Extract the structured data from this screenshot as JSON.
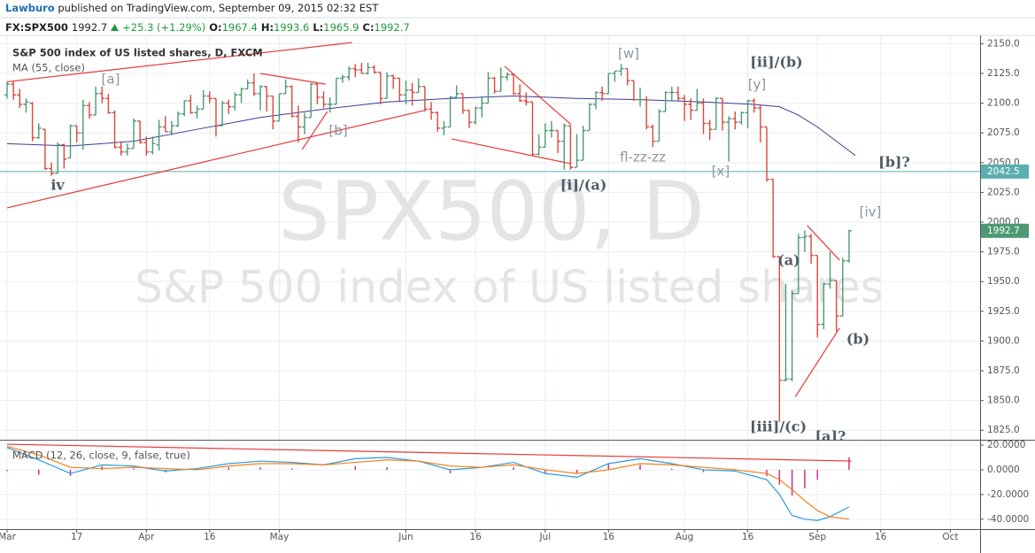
{
  "header": {
    "author": "Lawburo",
    "published": "published on TradingView.com, September 09, 2015 02:32 EST",
    "symbol": "FX:SPX500",
    "last": 1992.7,
    "change": "+25.3 (+1.29%)",
    "ohlc_labels": [
      "O:",
      "H:",
      "L:",
      "C:"
    ],
    "ohlc_values": [
      1967.4,
      1993.6,
      1965.9,
      1992.7
    ]
  },
  "chart_data": [
    {
      "type": "ohlc",
      "title": "S&P 500 index of US listed shares, D, FXCM",
      "watermark": "SPX500, D",
      "watermark_subtitle": "S&P 500 index of US listed shares",
      "up_color": "#4c9a73",
      "down_color": "#d9483b",
      "ohlc": [
        [
          2107,
          2118,
          2104,
          2116
        ],
        [
          2116,
          2118,
          2103,
          2107
        ],
        [
          2107,
          2112,
          2096,
          2099
        ],
        [
          2099,
          2104,
          2092,
          2101
        ],
        [
          2100,
          2101,
          2068,
          2071
        ],
        [
          2071,
          2083,
          2070,
          2079
        ],
        [
          2078,
          2078,
          2044,
          2045
        ],
        [
          2045,
          2050,
          2039,
          2041
        ],
        [
          2041,
          2067,
          2041,
          2065
        ],
        [
          2065,
          2066,
          2045,
          2053
        ],
        [
          2054,
          2082,
          2054,
          2081
        ],
        [
          2081,
          2081,
          2067,
          2075
        ],
        [
          2075,
          2103,
          2061,
          2098
        ],
        [
          2098,
          2101,
          2087,
          2090
        ],
        [
          2090,
          2114,
          2090,
          2108
        ],
        [
          2108,
          2114,
          2100,
          2104
        ],
        [
          2104,
          2108,
          2091,
          2092
        ],
        [
          2092,
          2094,
          2062,
          2063
        ],
        [
          2063,
          2068,
          2056,
          2059
        ],
        [
          2059,
          2066,
          2056,
          2062
        ],
        [
          2062,
          2087,
          2062,
          2085
        ],
        [
          2085,
          2085,
          2066,
          2067
        ],
        [
          2067,
          2072,
          2056,
          2059
        ],
        [
          2059,
          2072,
          2057,
          2066
        ],
        [
          2065,
          2086,
          2060,
          2080
        ],
        [
          2080,
          2089,
          2076,
          2076
        ],
        [
          2076,
          2085,
          2073,
          2081
        ],
        [
          2081,
          2093,
          2080,
          2091
        ],
        [
          2091,
          2102,
          2089,
          2102
        ],
        [
          2102,
          2107,
          2091,
          2092
        ],
        [
          2092,
          2098,
          2087,
          2095
        ],
        [
          2095,
          2111,
          2095,
          2106
        ],
        [
          2106,
          2110,
          2100,
          2104
        ],
        [
          2104,
          2104,
          2072,
          2081
        ],
        [
          2081,
          2102,
          2081,
          2100
        ],
        [
          2100,
          2103,
          2091,
          2097
        ],
        [
          2097,
          2109,
          2094,
          2107
        ],
        [
          2107,
          2113,
          2100,
          2112
        ],
        [
          2112,
          2120,
          2112,
          2117
        ],
        [
          2117,
          2125,
          2106,
          2108
        ],
        [
          2108,
          2115,
          2094,
          2114
        ],
        [
          2114,
          2114,
          2093,
          2106
        ],
        [
          2106,
          2106,
          2078,
          2085
        ],
        [
          2085,
          2108,
          2085,
          2108
        ],
        [
          2108,
          2120,
          2108,
          2114
        ],
        [
          2114,
          2115,
          2088,
          2089
        ],
        [
          2089,
          2098,
          2067,
          2080
        ],
        [
          2080,
          2092,
          2074,
          2088
        ],
        [
          2088,
          2117,
          2088,
          2116
        ],
        [
          2116,
          2117,
          2099,
          2105
        ],
        [
          2105,
          2110,
          2096,
          2099
        ],
        [
          2099,
          2105,
          2092,
          2099
        ],
        [
          2099,
          2121,
          2099,
          2121
        ],
        [
          2121,
          2124,
          2117,
          2122
        ],
        [
          2122,
          2131,
          2119,
          2129
        ],
        [
          2129,
          2133,
          2122,
          2128
        ],
        [
          2128,
          2134,
          2125,
          2125
        ],
        [
          2125,
          2134,
          2124,
          2130
        ],
        [
          2130,
          2132,
          2125,
          2126
        ],
        [
          2126,
          2126,
          2099,
          2104
        ],
        [
          2104,
          2126,
          2104,
          2123
        ],
        [
          2123,
          2124,
          2112,
          2121
        ],
        [
          2121,
          2121,
          2102,
          2107
        ],
        [
          2107,
          2119,
          2099,
          2111
        ],
        [
          2111,
          2117,
          2098,
          2109
        ],
        [
          2109,
          2121,
          2109,
          2114
        ],
        [
          2114,
          2114,
          2093,
          2095
        ],
        [
          2095,
          2101,
          2086,
          2092
        ],
        [
          2092,
          2093,
          2076,
          2079
        ],
        [
          2079,
          2085,
          2073,
          2080
        ],
        [
          2080,
          2106,
          2080,
          2105
        ],
        [
          2105,
          2115,
          2105,
          2108
        ],
        [
          2108,
          2108,
          2091,
          2094
        ],
        [
          2094,
          2094,
          2079,
          2084
        ],
        [
          2084,
          2097,
          2082,
          2096
        ],
        [
          2096,
          2106,
          2088,
          2100
        ],
        [
          2100,
          2126,
          2100,
          2121
        ],
        [
          2121,
          2122,
          2108,
          2110
        ],
        [
          2110,
          2130,
          2110,
          2122
        ],
        [
          2122,
          2126,
          2119,
          2124
        ],
        [
          2124,
          2125,
          2107,
          2108
        ],
        [
          2108,
          2116,
          2101,
          2102
        ],
        [
          2102,
          2109,
          2098,
          2101
        ],
        [
          2101,
          2101,
          2056,
          2057
        ],
        [
          2057,
          2074,
          2056,
          2063
        ],
        [
          2063,
          2083,
          2063,
          2077
        ],
        [
          2077,
          2085,
          2071,
          2077
        ],
        [
          2077,
          2077,
          2058,
          2068
        ],
        [
          2068,
          2083,
          2044,
          2081
        ],
        [
          2081,
          2081,
          2044,
          2046
        ],
        [
          2046,
          2074,
          2046,
          2052
        ],
        [
          2052,
          2081,
          2052,
          2077
        ],
        [
          2077,
          2100,
          2077,
          2099
        ],
        [
          2099,
          2110,
          2095,
          2109
        ],
        [
          2109,
          2114,
          2102,
          2108
        ],
        [
          2108,
          2125,
          2108,
          2125
        ],
        [
          2125,
          2127,
          2118,
          2127
        ],
        [
          2127,
          2133,
          2123,
          2129
        ],
        [
          2129,
          2129,
          2115,
          2119
        ],
        [
          2119,
          2119,
          2102,
          2103
        ],
        [
          2103,
          2113,
          2097,
          2103
        ],
        [
          2103,
          2106,
          2078,
          2080
        ],
        [
          2080,
          2082,
          2063,
          2068
        ],
        [
          2068,
          2095,
          2068,
          2093
        ],
        [
          2093,
          2110,
          2093,
          2109
        ],
        [
          2109,
          2114,
          2102,
          2109
        ],
        [
          2109,
          2114,
          2102,
          2104
        ],
        [
          2104,
          2107,
          2085,
          2099
        ],
        [
          2099,
          2104,
          2086,
          2094
        ],
        [
          2094,
          2112,
          2094,
          2100
        ],
        [
          2100,
          2104,
          2074,
          2083
        ],
        [
          2083,
          2086,
          2069,
          2078
        ],
        [
          2078,
          2105,
          2078,
          2104
        ],
        [
          2104,
          2104,
          2077,
          2084
        ],
        [
          2084,
          2089,
          2051,
          2087
        ],
        [
          2087,
          2093,
          2078,
          2084
        ],
        [
          2084,
          2093,
          2082,
          2092
        ],
        [
          2092,
          2103,
          2079,
          2102
        ],
        [
          2102,
          2104,
          2092,
          2096
        ],
        [
          2096,
          2099,
          2067,
          2080
        ],
        [
          2080,
          2080,
          2034,
          2036
        ],
        [
          2036,
          2036,
          1970,
          1971
        ],
        [
          1971,
          1971,
          1832,
          1867
        ],
        [
          1867,
          1948,
          1866,
          1868
        ],
        [
          1868,
          1943,
          1866,
          1940
        ],
        [
          1940,
          1990,
          1940,
          1987
        ],
        [
          1987,
          1993,
          1975,
          1988
        ],
        [
          1988,
          1990,
          1965,
          1972
        ],
        [
          1972,
          1972,
          1903,
          1914
        ],
        [
          1914,
          1949,
          1910,
          1948
        ],
        [
          1948,
          1975,
          1944,
          1951
        ],
        [
          1951,
          1951,
          1908,
          1921
        ],
        [
          1921,
          1970,
          1921,
          1967.4
        ],
        [
          1967.4,
          1993.6,
          1965.9,
          1992.7
        ]
      ],
      "ma": {
        "name": "MA (55, close)",
        "color": "#3b3b96",
        "x": [
          0,
          10,
          20,
          30,
          40,
          50,
          60,
          70,
          80,
          90,
          100,
          110,
          118,
          122,
          125,
          128,
          131,
          134
        ],
        "values": [
          2066,
          2064,
          2068,
          2078,
          2088,
          2095,
          2101,
          2104,
          2106,
          2104,
          2103,
          2101,
          2099,
          2097,
          2090,
          2080,
          2068,
          2056
        ]
      },
      "hline": {
        "value": 2042.5,
        "color": "#5aafb0"
      },
      "trendline_color": "#e53935",
      "trendlines": [
        [
          0,
          2118,
          54.5,
          2151
        ],
        [
          0,
          2012,
          66,
          2094
        ],
        [
          40,
          2125,
          50.3,
          2116
        ],
        [
          46.6,
          2061,
          50.6,
          2093
        ],
        [
          78.6,
          2131,
          89.1,
          2082
        ],
        [
          70.2,
          2070,
          89.1,
          2049
        ],
        [
          126.4,
          1997,
          131.5,
          1968
        ],
        [
          124.5,
          1853,
          131.5,
          1911
        ]
      ],
      "annotations": [
        {
          "text": "iv",
          "style": "bold"
        },
        {
          "text": "[a]",
          "style": "plain"
        },
        {
          "text": "[b]",
          "style": "plain"
        },
        {
          "text": "[w]",
          "style": "plain"
        },
        {
          "text": "[ii]/(b)",
          "style": "bold"
        },
        {
          "text": "[y]",
          "style": "plain"
        },
        {
          "text": "fl-zz-zz",
          "style": "plain"
        },
        {
          "text": "[x]",
          "style": "plain"
        },
        {
          "text": "[i]/(a)",
          "style": "bold"
        },
        {
          "text": "[b]?",
          "style": "bold"
        },
        {
          "text": "[iv]",
          "style": "plain"
        },
        {
          "text": "(a)",
          "style": "bold"
        },
        {
          "text": "(b)",
          "style": "bold"
        },
        {
          "text": "[iii]/(c)",
          "style": "bold"
        },
        {
          "text": "[a]?",
          "style": "bold"
        }
      ],
      "xlim": [
        -1.12,
        153.7
      ],
      "xticks": [
        {
          "value": 0,
          "label": "Mar"
        },
        {
          "value": 11,
          "label": "17"
        },
        {
          "value": 22,
          "label": "Apr"
        },
        {
          "value": 32,
          "label": "16"
        },
        {
          "value": 43,
          "label": "May"
        },
        {
          "value": 63,
          "label": "Jun"
        },
        {
          "value": 74,
          "label": "16"
        },
        {
          "value": 85,
          "label": "Jul"
        },
        {
          "value": 95,
          "label": "16"
        },
        {
          "value": 107,
          "label": "Aug"
        },
        {
          "value": 117,
          "label": "16"
        },
        {
          "value": 128,
          "label": "Sep"
        },
        {
          "value": 138,
          "label": "16"
        },
        {
          "value": 149,
          "label": "Oct"
        }
      ],
      "ylim": [
        1817,
        2157
      ],
      "yticks": [
        {
          "value": 1825,
          "label": "1825.0"
        },
        {
          "value": 1850,
          "label": "1850.0"
        },
        {
          "value": 1875,
          "label": "1875.0"
        },
        {
          "value": 1900,
          "label": "1900.0"
        },
        {
          "value": 1925,
          "label": "1925.0"
        },
        {
          "value": 1950,
          "label": "1950.0"
        },
        {
          "value": 1975,
          "label": "1975.0"
        },
        {
          "value": 2000,
          "label": "2000.0"
        },
        {
          "value": 2025,
          "label": "2025.0"
        },
        {
          "value": 2050,
          "label": "2050.0"
        },
        {
          "value": 2075,
          "label": "2075.0"
        },
        {
          "value": 2100,
          "label": "2100.0"
        },
        {
          "value": 2125,
          "label": "2125.0"
        },
        {
          "value": 2150,
          "label": "2150.0"
        }
      ],
      "grid": true
    },
    {
      "type": "macd",
      "title": "MACD (12, 26, close, 9, false, true)",
      "x": [
        0,
        5,
        10,
        15,
        20,
        25,
        30,
        35,
        40,
        45,
        50,
        55,
        60,
        65,
        70,
        75,
        80,
        85,
        90,
        95,
        100,
        105,
        110,
        115,
        120,
        122,
        124,
        126,
        128,
        130,
        133
      ],
      "series": [
        {
          "color": "#2a9be0",
          "values": [
            18,
            8,
            -3,
            4,
            3,
            -1,
            1,
            5,
            7,
            6,
            4,
            9,
            10,
            7,
            0,
            2,
            6,
            -3,
            -6,
            5,
            9,
            5,
            0,
            -1,
            -8,
            -20,
            -37,
            -40,
            -41,
            -38,
            -30
          ]
        },
        {
          "color": "#f57f17",
          "values": [
            19,
            12,
            2,
            1,
            2,
            1,
            0,
            3,
            5,
            5,
            4,
            6,
            8,
            7,
            3,
            2,
            4,
            0,
            -3,
            0,
            5,
            4,
            2,
            0,
            -3,
            -8,
            -16,
            -25,
            -33,
            -38,
            -40
          ]
        }
      ],
      "histogram": {
        "color": "#d0308c",
        "values": [
          -1,
          -4,
          -5,
          3,
          1,
          -2,
          1,
          2,
          2,
          1,
          0,
          3,
          2,
          0,
          -3,
          0,
          2,
          -3,
          -3,
          5,
          4,
          1,
          -2,
          -1,
          -5,
          -12,
          -21,
          -15,
          -8,
          0,
          10
        ]
      },
      "trendline_color": "#e53935",
      "trendlines": [
        [
          0,
          20.7,
          133.4,
          7.1
        ]
      ],
      "ylim": [
        -48,
        23.6
      ],
      "yticks": [
        {
          "value": 20,
          "label": "20.0000"
        },
        {
          "value": 0,
          "label": "0.0000"
        },
        {
          "value": -20,
          "label": "-20.0000"
        },
        {
          "value": -40,
          "label": "-40.0000"
        }
      ],
      "grid": true
    }
  ]
}
